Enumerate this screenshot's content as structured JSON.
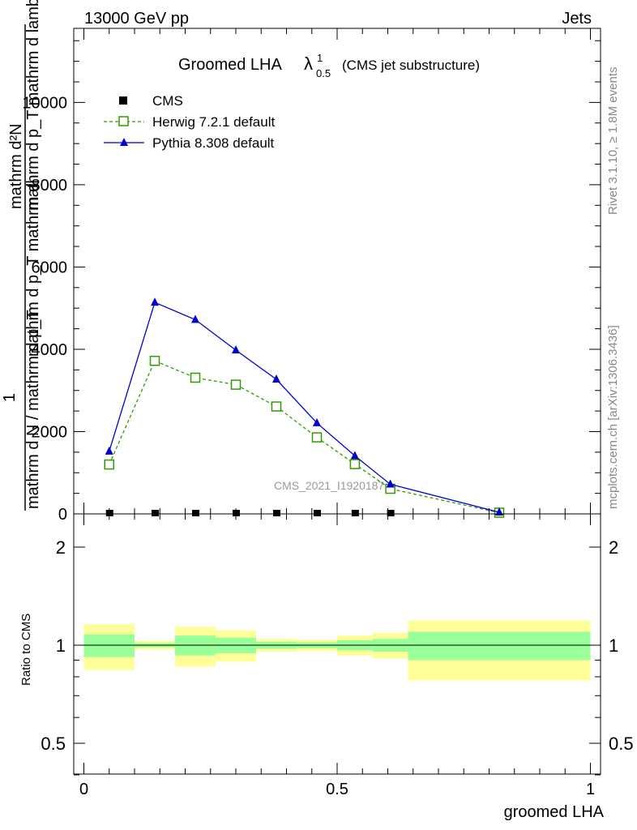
{
  "header": {
    "left": "13000 GeV pp",
    "right": "Jets"
  },
  "side_text": {
    "rivet": "Rivet 3.1.10, ≥ 1.8M events",
    "mcplots": "mcplots.cern.ch [arXiv:1306.3436]"
  },
  "watermark": "CMS_2021_I1920187",
  "title": {
    "main": "Groomed LHA",
    "lambda": "λ",
    "sup": "1",
    "sub": "0.5",
    "suffix": "(CMS jet substructure)"
  },
  "legend": {
    "cms": "CMS",
    "herwig": "Herwig 7.2.1 default",
    "pythia": "Pythia 8.308 default"
  },
  "ylabel": {
    "numerator": "mathrm d²N",
    "denominator": "mathrm d p_T mathrm d lambda",
    "prefix": "1",
    "prefix_den": "mathrm d N / mathrm d p_T",
    "overlap": "mathrm d p_T mathrm d"
  },
  "colors": {
    "herwig": "#339900",
    "pythia": "#0000cc",
    "band_outer": "#ffff99",
    "band_inner": "#99ff99",
    "data": "#000000"
  },
  "chart_data": [
    {
      "type": "line",
      "title": "Groomed LHA λ^1_0.5 (CMS jet substructure)",
      "xlim": [
        -0.02,
        1.02
      ],
      "ylim": [
        0,
        11800
      ],
      "yticks": [
        0,
        2000,
        4000,
        6000,
        8000,
        10000
      ],
      "ytick_labels": [
        "0",
        "2000",
        "4000",
        "6000",
        "8000",
        "10000"
      ],
      "series": [
        {
          "name": "CMS",
          "style": "markers",
          "x": [
            0.05,
            0.14,
            0.22,
            0.3,
            0.38,
            0.46,
            0.535,
            0.605
          ],
          "y": [
            0,
            0,
            0,
            0,
            0,
            0,
            0,
            0
          ]
        },
        {
          "name": "Herwig 7.2.1 default",
          "style": "dashed-open-square",
          "x": [
            0.05,
            0.14,
            0.22,
            0.3,
            0.38,
            0.46,
            0.535,
            0.605,
            0.82
          ],
          "y": [
            1200,
            3720,
            3310,
            3140,
            2610,
            1860,
            1210,
            610,
            30
          ]
        },
        {
          "name": "Pythia 8.308 default",
          "style": "solid-triangle",
          "x": [
            0.05,
            0.14,
            0.22,
            0.3,
            0.38,
            0.46,
            0.535,
            0.605,
            0.82
          ],
          "y": [
            1520,
            5140,
            4720,
            3980,
            3270,
            2210,
            1410,
            720,
            40
          ]
        }
      ]
    },
    {
      "type": "bar",
      "ylabel": "Ratio to CMS",
      "xlabel": "groomed LHA",
      "xlim": [
        -0.02,
        1.02
      ],
      "ylim": [
        0.37,
        2.27
      ],
      "ytick_labels": [
        "0.5",
        "1",
        "2"
      ],
      "xtick_labels": [
        "0",
        "0.5",
        "1"
      ],
      "reference_line": 1,
      "bins": [
        {
          "x_low": 0.0,
          "x_high": 0.1,
          "inner": [
            0.92,
            1.08
          ],
          "outer": [
            0.84,
            1.16
          ]
        },
        {
          "x_low": 0.1,
          "x_high": 0.18,
          "inner": [
            0.985,
            1.015
          ],
          "outer": [
            0.97,
            1.03
          ]
        },
        {
          "x_low": 0.18,
          "x_high": 0.26,
          "inner": [
            0.93,
            1.07
          ],
          "outer": [
            0.86,
            1.14
          ]
        },
        {
          "x_low": 0.26,
          "x_high": 0.34,
          "inner": [
            0.945,
            1.055
          ],
          "outer": [
            0.89,
            1.11
          ]
        },
        {
          "x_low": 0.34,
          "x_high": 0.42,
          "inner": [
            0.975,
            1.025
          ],
          "outer": [
            0.955,
            1.045
          ]
        },
        {
          "x_low": 0.42,
          "x_high": 0.5,
          "inner": [
            0.98,
            1.02
          ],
          "outer": [
            0.96,
            1.04
          ]
        },
        {
          "x_low": 0.5,
          "x_high": 0.57,
          "inner": [
            0.965,
            1.035
          ],
          "outer": [
            0.93,
            1.07
          ]
        },
        {
          "x_low": 0.57,
          "x_high": 0.64,
          "inner": [
            0.955,
            1.045
          ],
          "outer": [
            0.91,
            1.09
          ]
        },
        {
          "x_low": 0.64,
          "x_high": 1.0,
          "inner": [
            0.9,
            1.1
          ],
          "outer": [
            0.78,
            1.19
          ]
        }
      ]
    }
  ]
}
